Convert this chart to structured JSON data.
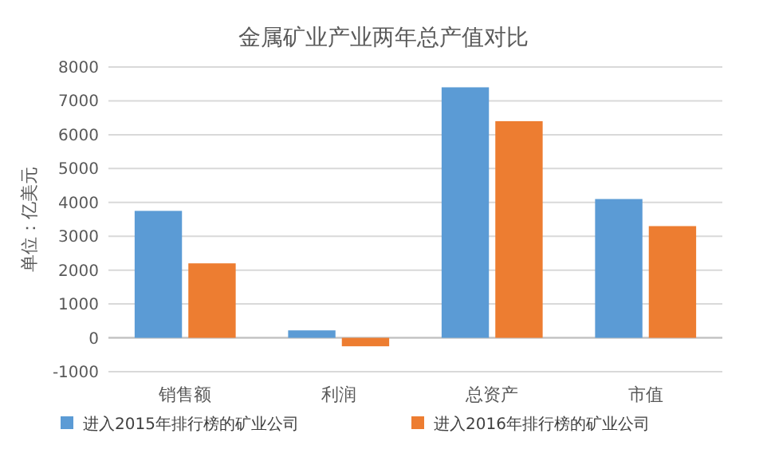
{
  "chart_data": {
    "type": "bar",
    "title": "金属矿业产业两年总产值对比",
    "ylabel": "单位：亿美元",
    "categories": [
      "销售额",
      "利润",
      "总资产",
      "市值"
    ],
    "series": [
      {
        "name": "进入2015年排行榜的矿业公司",
        "color": "#5b9bd5",
        "values": [
          3750,
          220,
          7400,
          4100
        ]
      },
      {
        "name": "进入2016年排行榜的矿业公司",
        "color": "#ed7d31",
        "values": [
          2200,
          -250,
          6400,
          3300
        ]
      }
    ],
    "ylim": [
      -1000,
      8000
    ],
    "yticks": [
      -1000,
      0,
      1000,
      2000,
      3000,
      4000,
      5000,
      6000,
      7000,
      8000
    ],
    "grid": "y",
    "legend": "bottom"
  }
}
